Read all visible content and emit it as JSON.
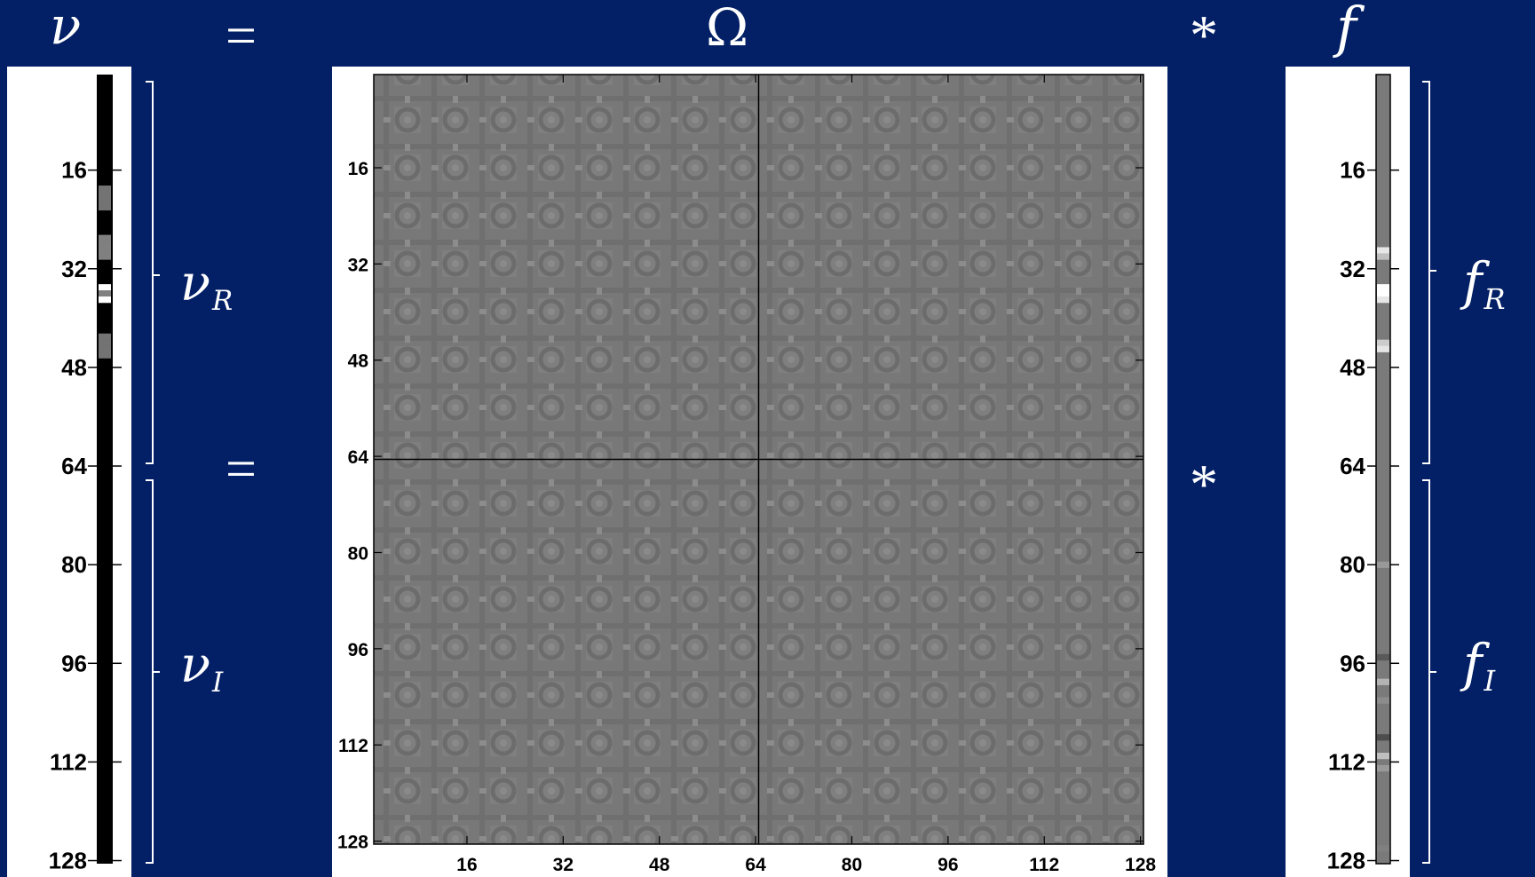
{
  "equation": {
    "lhs": "ν",
    "equals": "=",
    "matrix": "Ω",
    "times": "*",
    "rhs": "f"
  },
  "block_equation": {
    "nu_real": {
      "base": "ν",
      "sub": "R"
    },
    "nu_imag": {
      "base": "ν",
      "sub": "I"
    },
    "f_real": {
      "base": "f",
      "sub": "R"
    },
    "f_imag": {
      "base": "f",
      "sub": "I"
    },
    "equals": "=",
    "times": "*"
  },
  "axis": {
    "range": [
      1,
      128
    ],
    "ticks": [
      16,
      32,
      48,
      64,
      80,
      96,
      112,
      128
    ],
    "block_split": 64
  },
  "colors": {
    "background": "#032066",
    "matrix_gray": "#7a7a7a",
    "matrix_dark": "#6f6f6f",
    "matrix_light": "#8c8c8c"
  },
  "nu_vector_bright_rows": [
    {
      "row": 19,
      "level": 0.45
    },
    {
      "row": 20,
      "level": 0.45
    },
    {
      "row": 21,
      "level": 0.45
    },
    {
      "row": 22,
      "level": 0.45
    },
    {
      "row": 27,
      "level": 0.5
    },
    {
      "row": 28,
      "level": 0.5
    },
    {
      "row": 29,
      "level": 0.5
    },
    {
      "row": 30,
      "level": 0.5
    },
    {
      "row": 35,
      "level": 1.0
    },
    {
      "row": 36,
      "level": 0.5
    },
    {
      "row": 37,
      "level": 1.0
    },
    {
      "row": 43,
      "level": 0.45
    },
    {
      "row": 44,
      "level": 0.45
    },
    {
      "row": 45,
      "level": 0.45
    },
    {
      "row": 46,
      "level": 0.45
    }
  ],
  "f_vector_bright_rows": [
    {
      "row": 29,
      "level": 0.9
    },
    {
      "row": 30,
      "level": 0.75
    },
    {
      "row": 35,
      "level": 1.0
    },
    {
      "row": 36,
      "level": 1.0
    },
    {
      "row": 37,
      "level": 0.9
    },
    {
      "row": 44,
      "level": 0.8
    },
    {
      "row": 45,
      "level": 0.9
    },
    {
      "row": 80,
      "level": 0.6
    },
    {
      "row": 95,
      "level": 0.35
    },
    {
      "row": 99,
      "level": 0.7
    },
    {
      "row": 102,
      "level": 0.55
    },
    {
      "row": 108,
      "level": 0.3
    },
    {
      "row": 111,
      "level": 0.75
    },
    {
      "row": 113,
      "level": 0.6
    },
    {
      "row": 126,
      "level": 0.5
    }
  ]
}
